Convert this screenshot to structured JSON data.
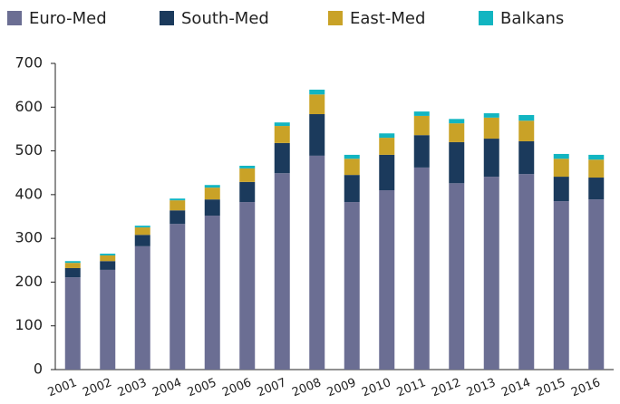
{
  "chart_data": {
    "type": "stacked_bar",
    "categories": [
      "2001",
      "2002",
      "2003",
      "2004",
      "2005",
      "2006",
      "2007",
      "2008",
      "2009",
      "2010",
      "2011",
      "2012",
      "2013",
      "2014",
      "2015",
      "2016"
    ],
    "series": [
      {
        "name": "Euro-Med",
        "color": "#6b6e93",
        "values": [
          211,
          228,
          282,
          333,
          352,
          383,
          449,
          489,
          383,
          410,
          462,
          426,
          441,
          447,
          385,
          389
        ]
      },
      {
        "name": "South-Med",
        "color": "#1b3a5c",
        "values": [
          21,
          20,
          26,
          31,
          37,
          46,
          69,
          95,
          62,
          81,
          74,
          94,
          87,
          75,
          56,
          50
        ]
      },
      {
        "name": "East-Med",
        "color": "#c9a227",
        "values": [
          12,
          13,
          17,
          23,
          27,
          31,
          39,
          45,
          37,
          39,
          44,
          43,
          48,
          47,
          41,
          41
        ]
      },
      {
        "name": "Balkans",
        "color": "#12b5c1",
        "values": [
          4,
          4,
          4,
          4,
          6,
          6,
          8,
          11,
          9,
          10,
          10,
          10,
          10,
          13,
          11,
          11
        ]
      }
    ],
    "ylim": [
      0,
      700
    ],
    "yticks": [
      0,
      100,
      200,
      300,
      400,
      500,
      600,
      700
    ],
    "legend": "top"
  }
}
